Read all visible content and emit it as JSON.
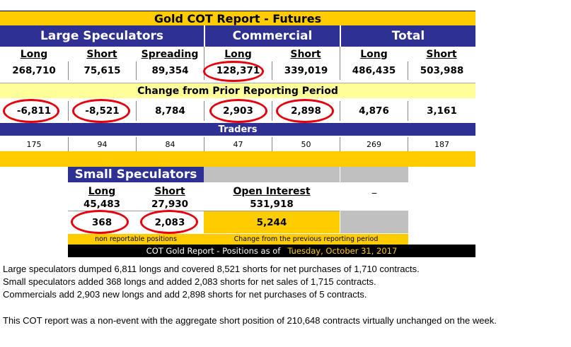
{
  "title": "Gold COT Report - Futures",
  "groups": {
    "large_speculators": "Large Speculators",
    "commercial": "Commercial",
    "total": "Total"
  },
  "columns": {
    "long": "Long",
    "short": "Short",
    "spreading": "Spreading"
  },
  "positions": {
    "large_long": "268,710",
    "large_short": "75,615",
    "large_spreading": "89,354",
    "comm_long": "128,371",
    "comm_short": "339,019",
    "total_long": "486,435",
    "total_short": "503,988"
  },
  "change_title": "Change from Prior Reporting Period",
  "changes": {
    "large_long": "-6,811",
    "large_short": "-8,521",
    "large_spreading": "8,784",
    "comm_long": "2,903",
    "comm_short": "2,898",
    "total_long": "4,876",
    "total_short": "3,161"
  },
  "traders_title": "Traders",
  "traders": {
    "large_long": "175",
    "large_short": "94",
    "large_spreading": "84",
    "comm_long": "47",
    "comm_short": "50",
    "total_long": "269",
    "total_short": "187"
  },
  "small_speculators": {
    "title": "Small Speculators",
    "long_label": "Long",
    "short_label": "Short",
    "long": "45,483",
    "short": "27,930",
    "change_long": "368",
    "change_short": "2,083",
    "note": "non reportable positions"
  },
  "open_interest": {
    "label": "Open Interest",
    "value": "531,918",
    "change": "5,244",
    "note": "Change from the previous reporting period"
  },
  "dash": "_",
  "footer": {
    "label": "COT Gold Report - Positions as of",
    "date": "Tuesday, October 31, 2017"
  },
  "commentary": {
    "line1": "Large speculators dumped 6,811 longs and covered 8,521 shorts for net purchases of 1,710 contracts.",
    "line2": "Small speculators added 368 longs and added 2,083 shorts for net sales of 1,715 contracts.",
    "line3": "Commercials add 2,903 new longs and add 2,898 shorts for net purchases of 5 contracts.",
    "line4": "This COT report was a non-event with the aggregate short position of 210,648 contracts virtually unchanged on the week."
  },
  "colors": {
    "gold": "#ffcc00",
    "navy": "#2e3192",
    "light_yellow": "#ffff99",
    "red_circle": "#e8000b",
    "gray": "#c0c0c0",
    "footer_date": "#ffcc00"
  }
}
